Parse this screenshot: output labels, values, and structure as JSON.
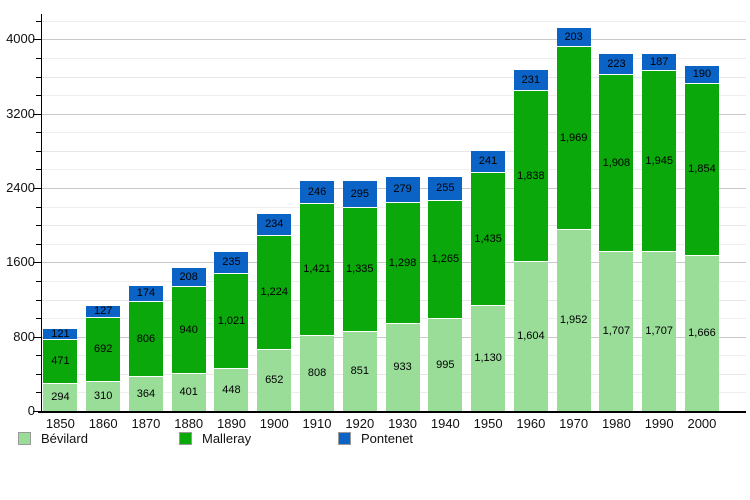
{
  "chart_data": {
    "type": "bar",
    "stacked": true,
    "title": "",
    "xlabel": "",
    "ylabel": "",
    "categories": [
      "1850",
      "1860",
      "1870",
      "1880",
      "1890",
      "1900",
      "1910",
      "1920",
      "1930",
      "1940",
      "1950",
      "1960",
      "1970",
      "1980",
      "1990",
      "2000"
    ],
    "series": [
      {
        "name": "Bévilard",
        "color": "#99dd99",
        "values": [
          294,
          310,
          364,
          401,
          448,
          652,
          808,
          851,
          933,
          995,
          1130,
          1604,
          1952,
          1707,
          1707,
          1666
        ]
      },
      {
        "name": "Malleray",
        "color": "#0aa80a",
        "values": [
          471,
          692,
          806,
          940,
          1021,
          1224,
          1421,
          1335,
          1298,
          1265,
          1435,
          1838,
          1969,
          1908,
          1945,
          1854
        ]
      },
      {
        "name": "Pontenet",
        "color": "#0b63c6",
        "values": [
          121,
          127,
          174,
          208,
          235,
          234,
          246,
          295,
          279,
          255,
          241,
          231,
          203,
          223,
          187,
          190
        ]
      }
    ],
    "ylim": [
      0,
      4274
    ],
    "ytick_labels": [
      "0",
      "800",
      "1600",
      "2400",
      "3200",
      "4000"
    ],
    "ytick_values": [
      0,
      800,
      1600,
      2400,
      3200,
      4000
    ],
    "minor_tick_step": 200,
    "grid": true,
    "value_labels": true,
    "legend_position": "bottom",
    "colors": {
      "axis": "#000000",
      "major_grid": "#c9c9c9",
      "minor_grid": "#eeeeee",
      "text": "#111111"
    }
  }
}
